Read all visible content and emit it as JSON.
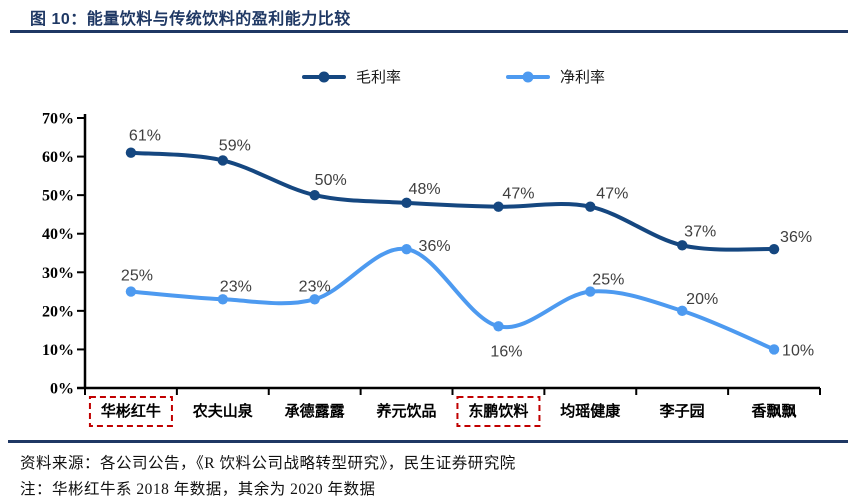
{
  "figure": {
    "title": "图 10：能量饮料与传统饮料的盈利能力比较",
    "source_note": "资料来源：各公司公告，《R 饮料公司战略转型研究》，民生证券研究院",
    "footnote": "注：华彬红牛系 2018 年数据，其余为 2020 年数据"
  },
  "colors": {
    "title_navy": "#1F3864",
    "rule_navy": "#1F3864",
    "axis_black": "#000000",
    "data_label_gray": "#3F3F3F",
    "highlight_red": "#C00000"
  },
  "chart_data": {
    "type": "line",
    "smooth": true,
    "grid": false,
    "legend_position": "top",
    "categories": [
      "华彬红牛",
      "农夫山泉",
      "承德露露",
      "养元饮品",
      "东鹏饮料",
      "均瑶健康",
      "李子园",
      "香飘飘"
    ],
    "highlighted_categories": [
      "华彬红牛",
      "东鹏饮料"
    ],
    "ylim": [
      0,
      70
    ],
    "y_ticks": [
      "0%",
      "10%",
      "20%",
      "30%",
      "40%",
      "50%",
      "60%",
      "70%"
    ],
    "xlabel": "",
    "ylabel": "",
    "series": [
      {
        "id": "gross-margin",
        "name": "毛利率",
        "color": "#154780",
        "values": [
          61,
          59,
          50,
          48,
          47,
          47,
          37,
          36
        ],
        "labels": [
          "61%",
          "59%",
          "50%",
          "48%",
          "47%",
          "47%",
          "37%",
          "36%"
        ],
        "label_offsets": [
          [
            14,
            -12
          ],
          [
            12,
            -10
          ],
          [
            16,
            -10
          ],
          [
            18,
            -9
          ],
          [
            20,
            -8
          ],
          [
            22,
            -8
          ],
          [
            18,
            -9
          ],
          [
            22,
            -7
          ]
        ]
      },
      {
        "id": "net-margin",
        "name": "净利率",
        "color": "#4D9AF0",
        "values": [
          25,
          23,
          23,
          36,
          16,
          25,
          20,
          10
        ],
        "labels": [
          "25%",
          "23%",
          "23%",
          "36%",
          "16%",
          "25%",
          "20%",
          "10%"
        ],
        "label_offsets": [
          [
            6,
            -11
          ],
          [
            13,
            -8
          ],
          [
            0,
            -8
          ],
          [
            28,
            2
          ],
          [
            8,
            30
          ],
          [
            18,
            -7
          ],
          [
            20,
            -7
          ],
          [
            24,
            6
          ]
        ]
      }
    ]
  }
}
